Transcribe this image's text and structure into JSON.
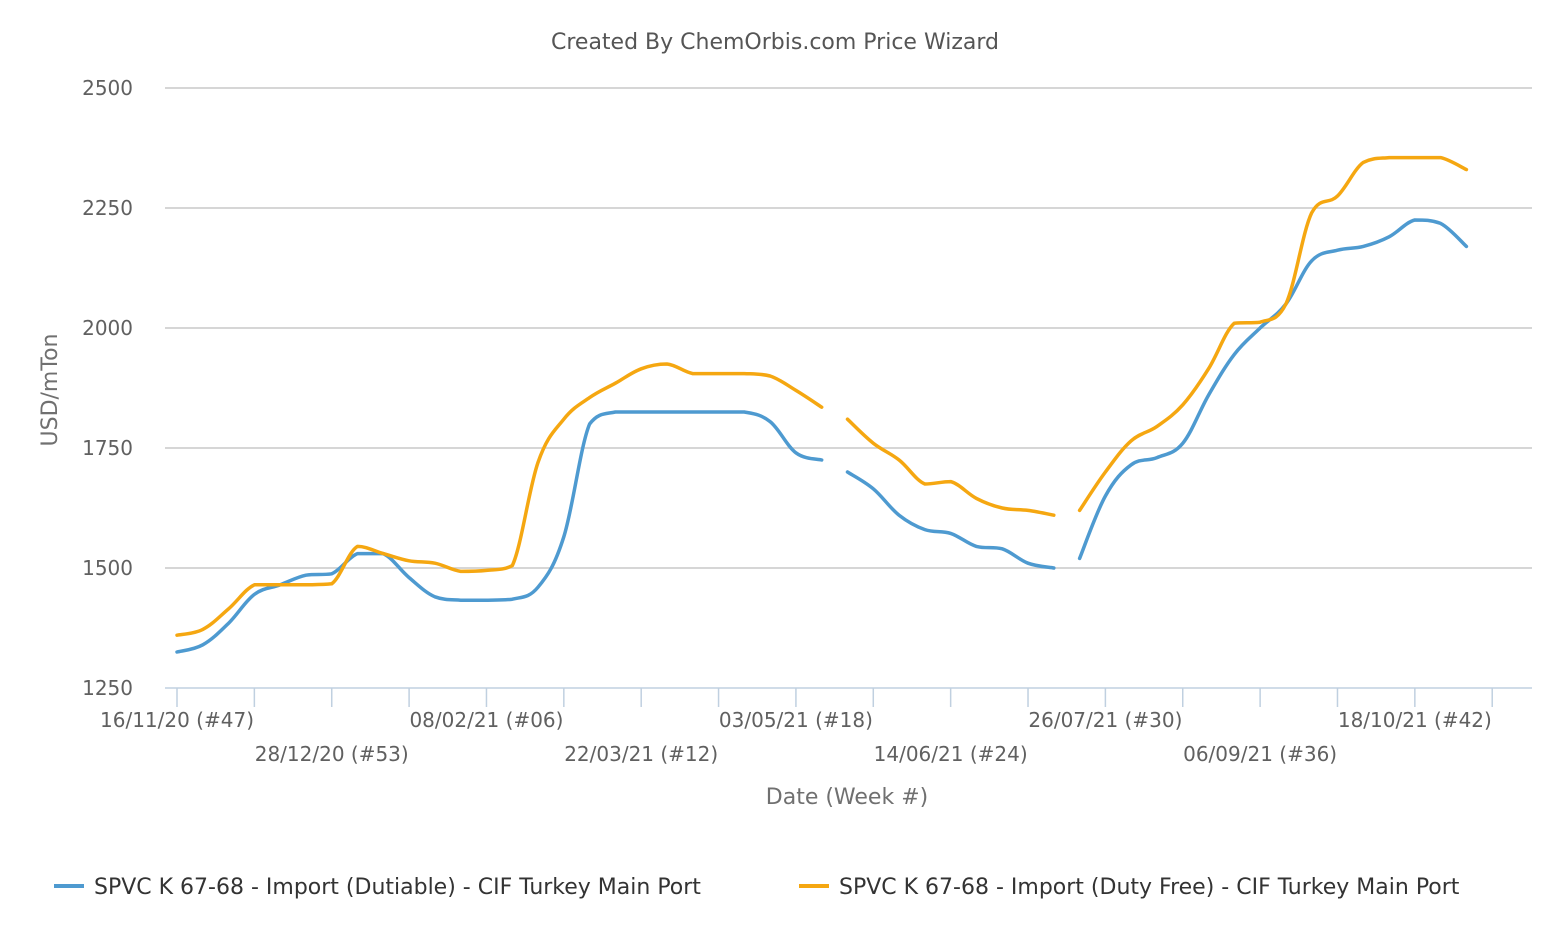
{
  "chart_data": {
    "type": "line",
    "title": "Created By ChemOrbis.com Price Wizard",
    "xlabel": "Date (Week #)",
    "ylabel": "USD/mTon",
    "ylim": [
      1250,
      2500
    ],
    "yticks": [
      1250,
      1500,
      1750,
      2000,
      2250,
      2500
    ],
    "grid": true,
    "legend_position": "bottom",
    "x_week_count": 53,
    "x_tick_labels": [
      {
        "week": 0,
        "label": "16/11/20 (#47)",
        "row": 1
      },
      {
        "week": 6,
        "label": "28/12/20 (#53)",
        "row": 2
      },
      {
        "week": 12,
        "label": "08/02/21 (#06)",
        "row": 1
      },
      {
        "week": 18,
        "label": "22/03/21 (#12)",
        "row": 2
      },
      {
        "week": 24,
        "label": "03/05/21 (#18)",
        "row": 1
      },
      {
        "week": 30,
        "label": "14/06/21 (#24)",
        "row": 2
      },
      {
        "week": 36,
        "label": "26/07/21 (#30)",
        "row": 1
      },
      {
        "week": 42,
        "label": "06/09/21 (#36)",
        "row": 2
      },
      {
        "week": 48,
        "label": "18/10/21 (#42)",
        "row": 1
      }
    ],
    "series": [
      {
        "name": "SPVC K 67-68 - Import (Dutiable) - CIF Turkey Main Port",
        "color": "#4e9ad0",
        "points": [
          [
            0,
            1325
          ],
          [
            1,
            1340
          ],
          [
            2,
            1385
          ],
          [
            3,
            1445
          ],
          [
            4,
            1465
          ],
          [
            5,
            1485
          ],
          [
            6,
            1488
          ],
          [
            7,
            1530
          ],
          [
            8,
            1530
          ],
          [
            9,
            1480
          ],
          [
            10,
            1440
          ],
          [
            11,
            1433
          ],
          [
            12,
            1433
          ],
          [
            13,
            1435
          ],
          [
            14,
            1460
          ],
          [
            15,
            1565
          ],
          [
            16,
            1800
          ],
          [
            17,
            1825
          ],
          [
            18,
            1825
          ],
          [
            19,
            1825
          ],
          [
            20,
            1825
          ],
          [
            21,
            1825
          ],
          [
            22,
            1825
          ],
          [
            23,
            1805
          ],
          [
            24,
            1740
          ],
          [
            25,
            1725
          ],
          null,
          [
            26,
            1700
          ],
          [
            27,
            1665
          ],
          [
            28,
            1610
          ],
          [
            29,
            1580
          ],
          [
            30,
            1572
          ],
          [
            31,
            1545
          ],
          [
            32,
            1540
          ],
          [
            33,
            1510
          ],
          [
            34,
            1500
          ],
          null,
          [
            35,
            1520
          ],
          [
            36,
            1650
          ],
          [
            37,
            1715
          ],
          [
            38,
            1730
          ],
          [
            39,
            1760
          ],
          [
            40,
            1860
          ],
          [
            41,
            1945
          ],
          [
            42,
            2000
          ],
          [
            43,
            2050
          ],
          [
            44,
            2140
          ],
          [
            45,
            2162
          ],
          [
            46,
            2170
          ],
          [
            47,
            2190
          ],
          [
            48,
            2225
          ],
          [
            49,
            2218
          ],
          [
            50,
            2170
          ]
        ]
      },
      {
        "name": "SPVC K 67-68 - Import (Duty Free) - CIF Turkey Main Port",
        "color": "#f5a711",
        "points": [
          [
            0,
            1360
          ],
          [
            1,
            1372
          ],
          [
            2,
            1415
          ],
          [
            3,
            1465
          ],
          [
            4,
            1465
          ],
          [
            5,
            1465
          ],
          [
            6,
            1467
          ],
          [
            7,
            1545
          ],
          [
            8,
            1530
          ],
          [
            9,
            1515
          ],
          [
            10,
            1510
          ],
          [
            11,
            1493
          ],
          [
            12,
            1495
          ],
          [
            13,
            1505
          ],
          [
            14,
            1720
          ],
          [
            15,
            1810
          ],
          [
            16,
            1855
          ],
          [
            17,
            1885
          ],
          [
            18,
            1915
          ],
          [
            19,
            1925
          ],
          [
            20,
            1905
          ],
          [
            21,
            1905
          ],
          [
            22,
            1905
          ],
          [
            23,
            1900
          ],
          [
            24,
            1870
          ],
          [
            25,
            1835
          ],
          null,
          [
            26,
            1810
          ],
          [
            27,
            1760
          ],
          [
            28,
            1725
          ],
          [
            29,
            1675
          ],
          [
            30,
            1680
          ],
          [
            31,
            1645
          ],
          [
            32,
            1625
          ],
          [
            33,
            1620
          ],
          [
            34,
            1610
          ],
          null,
          [
            35,
            1620
          ],
          [
            36,
            1700
          ],
          [
            37,
            1765
          ],
          [
            38,
            1795
          ],
          [
            39,
            1840
          ],
          [
            40,
            1915
          ],
          [
            41,
            2010
          ],
          [
            42,
            2012
          ],
          [
            43,
            2050
          ],
          [
            44,
            2240
          ],
          [
            45,
            2275
          ],
          [
            46,
            2345
          ],
          [
            47,
            2355
          ],
          [
            48,
            2355
          ],
          [
            49,
            2355
          ],
          [
            50,
            2330
          ]
        ]
      }
    ]
  }
}
